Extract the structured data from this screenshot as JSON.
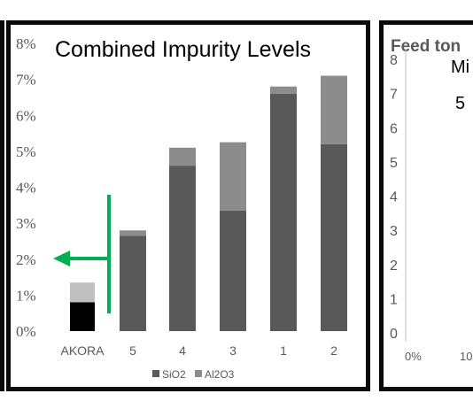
{
  "chart_data": [
    {
      "type": "bar",
      "stacked": true,
      "title": "Combined Impurity Levels",
      "categories": [
        "AKORA",
        "5",
        "4",
        "3",
        "1",
        "2"
      ],
      "y_ticks": [
        "0%",
        "1%",
        "2%",
        "3%",
        "4%",
        "5%",
        "6%",
        "7%",
        "8%"
      ],
      "ylim": [
        0,
        8
      ],
      "unit": "%",
      "series": [
        {
          "name": "SiO2",
          "values": [
            0.8,
            2.65,
            4.6,
            3.35,
            6.6,
            5.2
          ],
          "color": "#595959"
        },
        {
          "name": "Al2O3",
          "values": [
            0.55,
            0.15,
            0.5,
            1.9,
            0.2,
            1.9
          ],
          "color": "#8c8c8c"
        }
      ],
      "highlight": {
        "category": "AKORA",
        "colors": [
          "#000000",
          "#bfbfbf"
        ]
      },
      "legend_position": "bottom",
      "annotation_color": "#00b050"
    },
    {
      "type": "line",
      "title": "Feed ton",
      "subtitle_fragment": "Mi",
      "annotation_fragment": "5",
      "y_ticks": [
        "0",
        "1",
        "2",
        "3",
        "4",
        "5",
        "6",
        "7",
        "8"
      ],
      "x_ticks": [
        "0%",
        "10"
      ],
      "ylim": [
        0,
        8
      ]
    }
  ]
}
